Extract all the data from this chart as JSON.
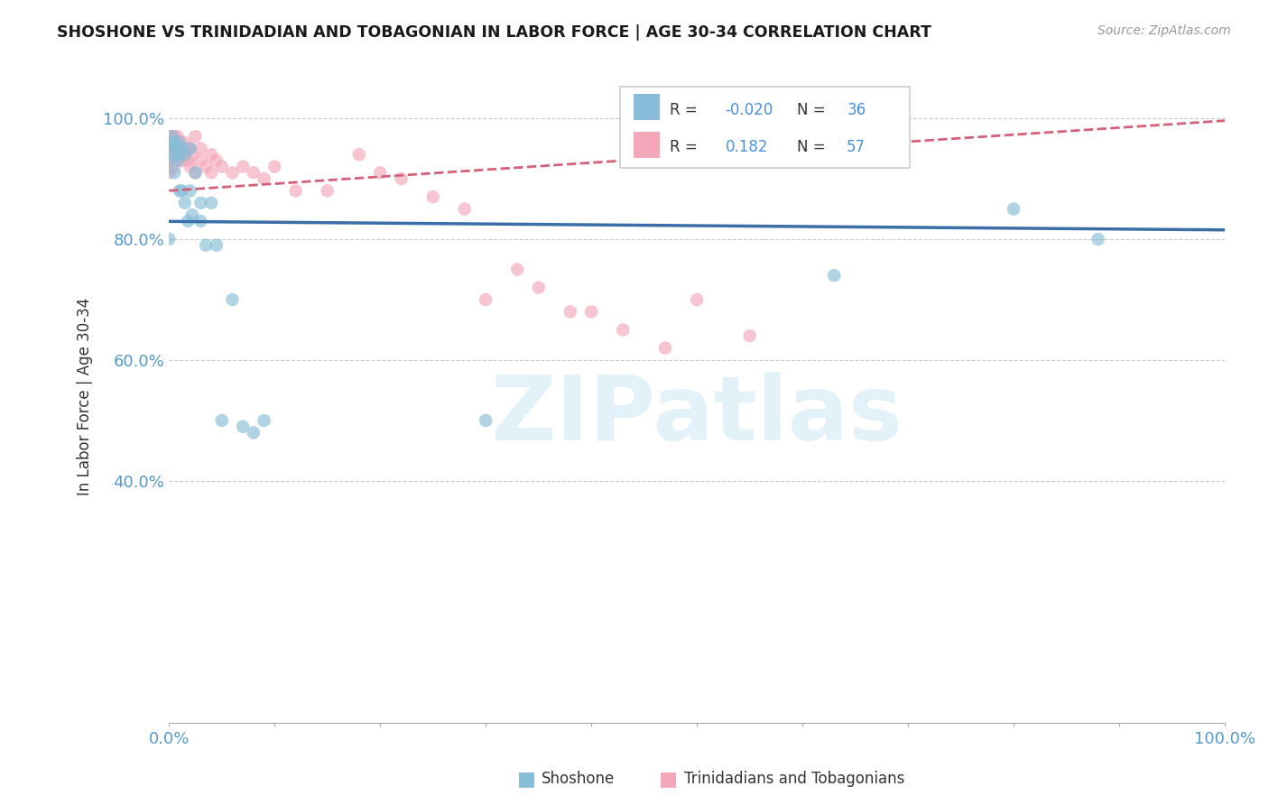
{
  "title": "SHOSHONE VS TRINIDADIAN AND TOBAGONIAN IN LABOR FORCE | AGE 30-34 CORRELATION CHART",
  "source": "Source: ZipAtlas.com",
  "ylabel": "In Labor Force | Age 30-34",
  "xlim": [
    0,
    1.0
  ],
  "ylim": [
    0,
    1.05
  ],
  "xticks": [
    0.0,
    0.1,
    0.2,
    0.3,
    0.4,
    0.5,
    0.6,
    0.7,
    0.8,
    0.9,
    1.0
  ],
  "yticks": [
    0.0,
    0.2,
    0.4,
    0.6,
    0.8,
    1.0
  ],
  "xticklabels_show": [
    "0.0%",
    "100.0%"
  ],
  "yticklabels_show": [
    "40.0%",
    "60.0%",
    "80.0%",
    "100.0%"
  ],
  "yticks_show": [
    0.4,
    0.6,
    0.8,
    1.0
  ],
  "legend1_label": "Shoshone",
  "legend2_label": "Trinidadians and Tobagonians",
  "R1": "-0.020",
  "N1": "36",
  "R2": "0.182",
  "N2": "57",
  "color_blue": "#87bdd8",
  "color_pink": "#f4a7b9",
  "color_blue_line": "#3a6ea8",
  "color_pink_line": "#d4607a",
  "watermark_text": "ZIPatlas",
  "shoshone_x": [
    0.0,
    0.0,
    0.0,
    0.003,
    0.003,
    0.005,
    0.005,
    0.005,
    0.008,
    0.008,
    0.01,
    0.01,
    0.01,
    0.012,
    0.012,
    0.015,
    0.015,
    0.018,
    0.02,
    0.02,
    0.022,
    0.025,
    0.03,
    0.03,
    0.035,
    0.04,
    0.045,
    0.05,
    0.06,
    0.07,
    0.08,
    0.09,
    0.3,
    0.63,
    0.8,
    0.88
  ],
  "shoshone_y": [
    0.95,
    0.93,
    0.8,
    0.97,
    0.96,
    0.96,
    0.94,
    0.91,
    0.95,
    0.93,
    0.96,
    0.94,
    0.88,
    0.95,
    0.88,
    0.94,
    0.86,
    0.83,
    0.95,
    0.88,
    0.84,
    0.91,
    0.86,
    0.83,
    0.79,
    0.86,
    0.79,
    0.5,
    0.7,
    0.49,
    0.48,
    0.5,
    0.5,
    0.74,
    0.85,
    0.8
  ],
  "trinidadian_x": [
    0.0,
    0.0,
    0.0,
    0.0,
    0.002,
    0.002,
    0.003,
    0.003,
    0.005,
    0.005,
    0.005,
    0.005,
    0.007,
    0.007,
    0.008,
    0.008,
    0.01,
    0.01,
    0.012,
    0.012,
    0.015,
    0.015,
    0.018,
    0.018,
    0.02,
    0.02,
    0.022,
    0.025,
    0.025,
    0.03,
    0.03,
    0.035,
    0.04,
    0.04,
    0.045,
    0.05,
    0.06,
    0.07,
    0.08,
    0.09,
    0.1,
    0.12,
    0.15,
    0.18,
    0.2,
    0.22,
    0.25,
    0.28,
    0.3,
    0.33,
    0.35,
    0.38,
    0.4,
    0.43,
    0.47,
    0.5,
    0.55
  ],
  "trinidadian_y": [
    0.97,
    0.95,
    0.93,
    0.91,
    0.97,
    0.95,
    0.96,
    0.94,
    0.97,
    0.96,
    0.94,
    0.92,
    0.96,
    0.94,
    0.97,
    0.95,
    0.96,
    0.94,
    0.95,
    0.93,
    0.96,
    0.94,
    0.95,
    0.93,
    0.95,
    0.92,
    0.94,
    0.97,
    0.91,
    0.95,
    0.93,
    0.92,
    0.94,
    0.91,
    0.93,
    0.92,
    0.91,
    0.92,
    0.91,
    0.9,
    0.92,
    0.88,
    0.88,
    0.94,
    0.91,
    0.9,
    0.87,
    0.85,
    0.7,
    0.75,
    0.72,
    0.68,
    0.68,
    0.65,
    0.62,
    0.7,
    0.64
  ]
}
